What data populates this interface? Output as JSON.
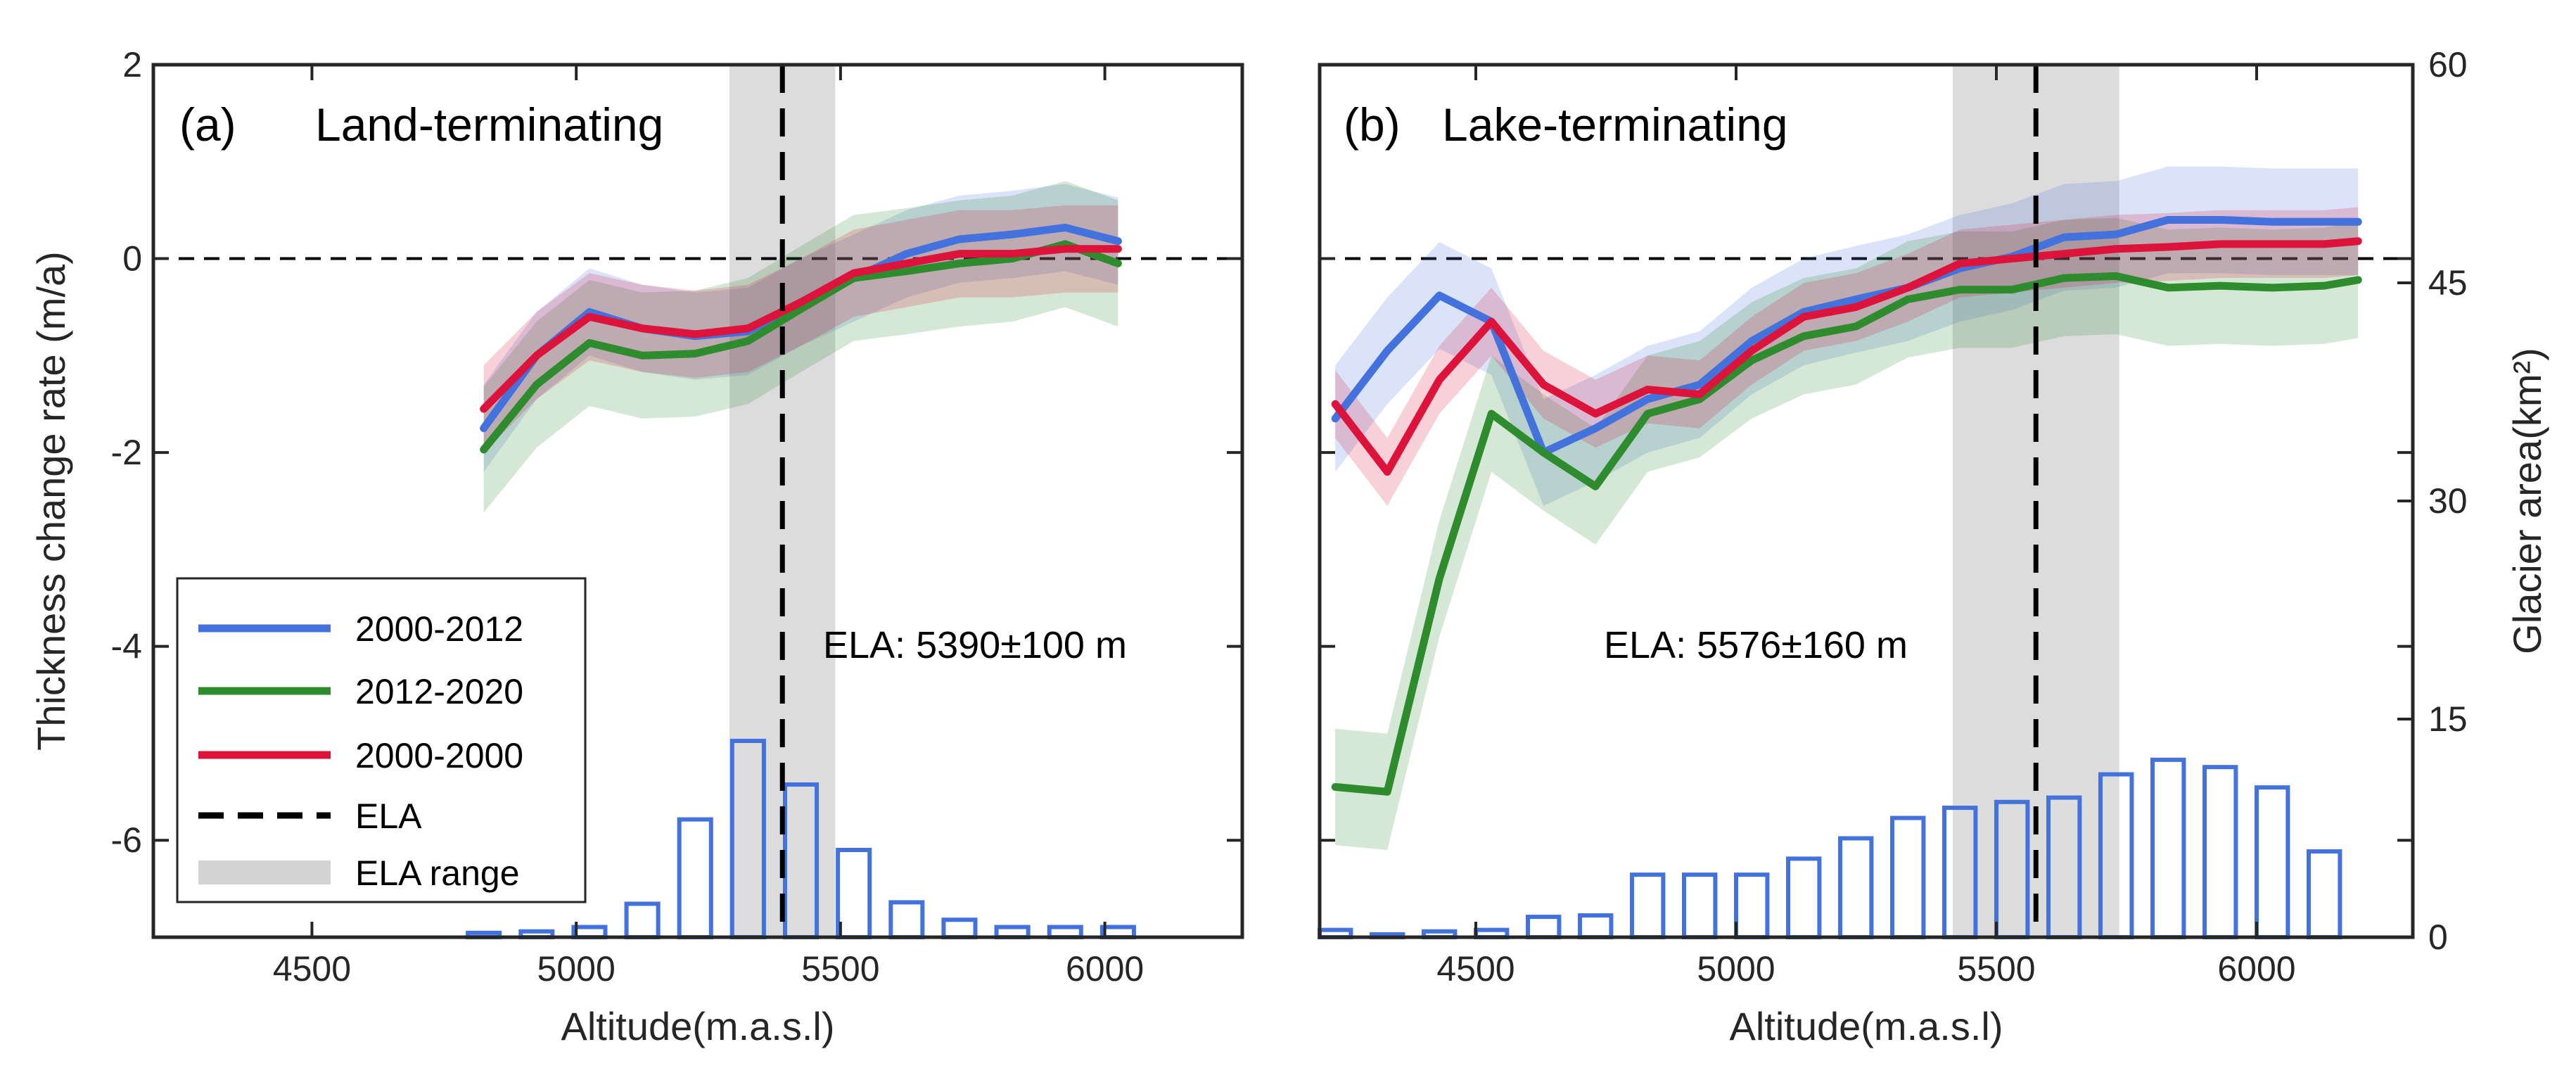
{
  "chart_data": [
    {
      "type": "line",
      "panel_label": "(a)",
      "title": "Land-terminating",
      "xlabel": "Altitude(m.a.s.l)",
      "ylabel": "Thickness change rate (m/a)",
      "xlim": [
        4200,
        6260
      ],
      "ylim": [
        -7,
        2
      ],
      "xticks": [
        "4500",
        "5000",
        "5500",
        "6000"
      ],
      "yticks": [
        "2",
        "0",
        "-2",
        "-4",
        "-6"
      ],
      "ela_text": "ELA: 5390±100 m",
      "ela": 5390,
      "ela_range": [
        5290,
        5490
      ],
      "zero_line": 0,
      "x": [
        4825,
        4925,
        5025,
        5125,
        5225,
        5325,
        5425,
        5525,
        5625,
        5725,
        5825,
        5925,
        6025
      ],
      "series": [
        {
          "name": "2000-2012",
          "color": "#4472dd",
          "values": [
            -1.75,
            -1.0,
            -0.55,
            -0.72,
            -0.8,
            -0.75,
            -0.45,
            -0.2,
            0.05,
            0.2,
            0.25,
            0.32,
            0.18
          ],
          "band": 0.45
        },
        {
          "name": "2012-2020",
          "color": "#2e8b2e",
          "values": [
            -1.97,
            -1.3,
            -0.87,
            -1.0,
            -0.98,
            -0.85,
            -0.52,
            -0.2,
            -0.13,
            -0.05,
            0.0,
            0.15,
            -0.05
          ],
          "band": 0.65
        },
        {
          "name": "2000-2000",
          "color": "#dc143c",
          "values": [
            -1.55,
            -1.0,
            -0.6,
            -0.72,
            -0.78,
            -0.72,
            -0.45,
            -0.15,
            -0.05,
            0.05,
            0.05,
            0.1,
            0.1
          ],
          "band": 0.45
        }
      ],
      "histogram": {
        "label": "Glacier area (km2)",
        "ylim": [
          0,
          60
        ],
        "x": [
          4825,
          4925,
          5025,
          5125,
          5225,
          5325,
          5425,
          5525,
          5625,
          5725,
          5825,
          5925,
          6025
        ],
        "values": [
          0.3,
          0.4,
          0.7,
          2.3,
          8.1,
          13.5,
          10.5,
          6.0,
          2.4,
          1.2,
          0.7,
          0.7,
          0.7
        ]
      }
    },
    {
      "type": "line",
      "panel_label": "(b)",
      "title": "Lake-terminating",
      "xlabel": "Altitude(m.a.s.l)",
      "ylabel": "Glacier area(km²)",
      "xlim": [
        4200,
        6300
      ],
      "ylim": [
        -7,
        2
      ],
      "xticks": [
        "4500",
        "5000",
        "5500",
        "6000"
      ],
      "y2ticks": [
        "60",
        "45",
        "30",
        "15",
        "0"
      ],
      "y2lim": [
        0,
        60
      ],
      "ela_text": "ELA: 5576±160 m",
      "ela": 5576,
      "ela_range": [
        5416,
        5736
      ],
      "zero_line": 0,
      "x": [
        4230,
        4330,
        4430,
        4530,
        4630,
        4730,
        4830,
        4930,
        5030,
        5130,
        5230,
        5330,
        5430,
        5530,
        5630,
        5730,
        5830,
        5930,
        6030,
        6130,
        6195
      ],
      "series": [
        {
          "name": "2000-2012",
          "color": "#4472dd",
          "values": [
            -1.65,
            -0.95,
            -0.38,
            -0.65,
            -2.0,
            -1.75,
            -1.45,
            -1.3,
            -0.85,
            -0.55,
            -0.42,
            -0.3,
            -0.1,
            0.02,
            0.22,
            0.25,
            0.4,
            0.4,
            0.38,
            0.38,
            0.38
          ],
          "band": 0.55
        },
        {
          "name": "2012-2020",
          "color": "#2e8b2e",
          "values": [
            -5.45,
            -5.5,
            -3.3,
            -1.6,
            -2.0,
            -2.35,
            -1.6,
            -1.45,
            -1.05,
            -0.8,
            -0.7,
            -0.42,
            -0.32,
            -0.32,
            -0.2,
            -0.18,
            -0.3,
            -0.28,
            -0.3,
            -0.28,
            -0.22
          ],
          "band": 0.6
        },
        {
          "name": "2000-2000",
          "color": "#dc143c",
          "values": [
            -1.5,
            -2.2,
            -1.25,
            -0.65,
            -1.3,
            -1.6,
            -1.35,
            -1.4,
            -0.95,
            -0.6,
            -0.5,
            -0.3,
            -0.05,
            0.0,
            0.05,
            0.1,
            0.12,
            0.15,
            0.15,
            0.15,
            0.18
          ],
          "band": 0.35
        }
      ],
      "histogram": {
        "label": "Glacier area(km²)",
        "ylim": [
          0,
          60
        ],
        "x": [
          4230,
          4330,
          4430,
          4530,
          4630,
          4730,
          4830,
          4930,
          5030,
          5130,
          5230,
          5330,
          5430,
          5530,
          5630,
          5730,
          5830,
          5930,
          6030,
          6130
        ],
        "values": [
          0.5,
          0.2,
          0.4,
          0.5,
          1.4,
          1.5,
          4.3,
          4.3,
          4.3,
          5.4,
          6.8,
          8.2,
          8.9,
          9.3,
          9.6,
          11.2,
          12.2,
          11.7,
          10.3,
          5.9
        ]
      }
    }
  ],
  "legend": {
    "position": "lower-left of panel (a)",
    "items": [
      {
        "label": "2000-2012",
        "color": "#4472dd",
        "style": "line"
      },
      {
        "label": "2012-2020",
        "color": "#2e8b2e",
        "style": "line"
      },
      {
        "label": "2000-2000",
        "color": "#dc143c",
        "style": "line"
      },
      {
        "label": "ELA",
        "color": "#000000",
        "style": "dashed"
      },
      {
        "label": "ELA range",
        "color": "#d3d3d3",
        "style": "band"
      }
    ]
  }
}
